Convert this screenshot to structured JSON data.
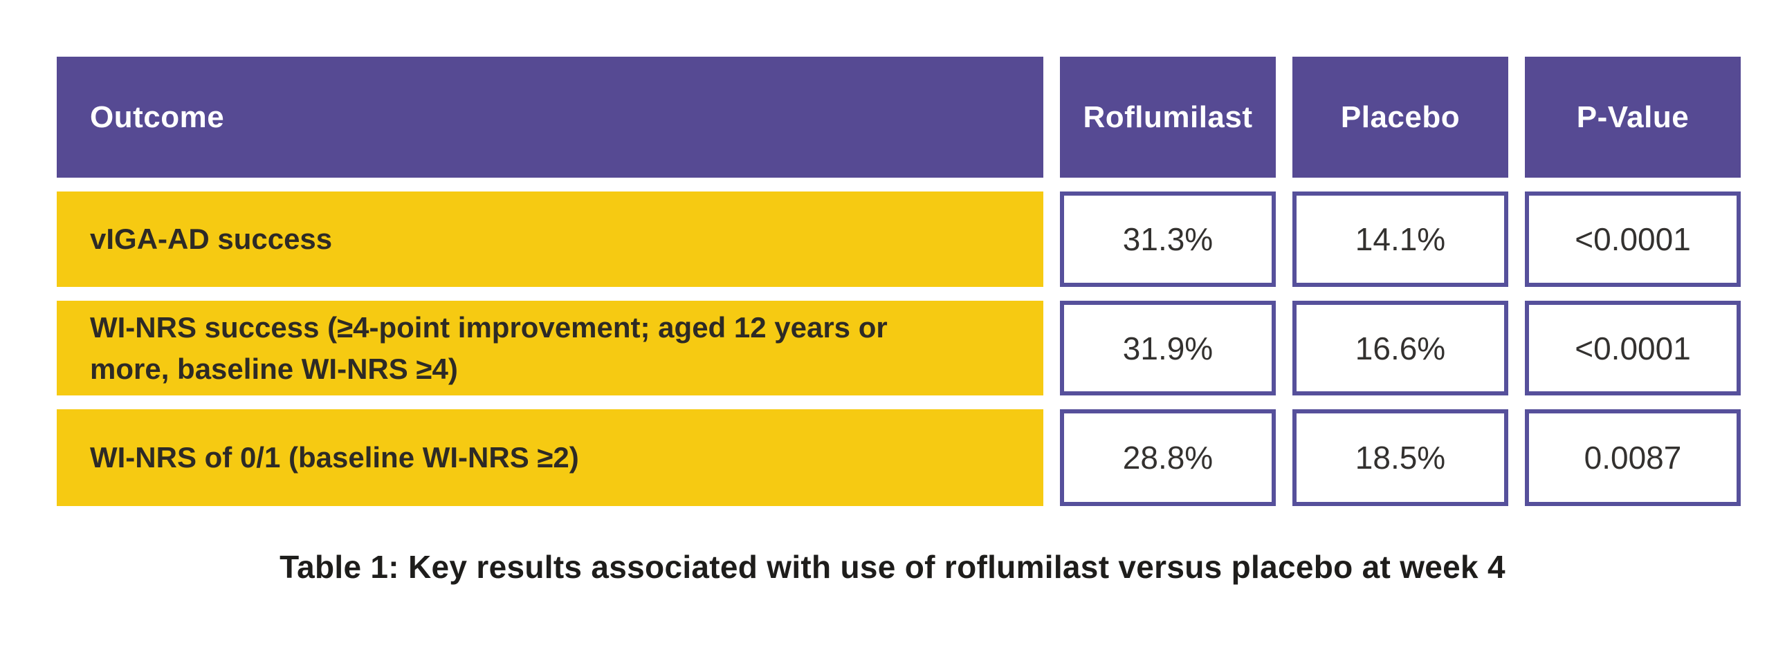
{
  "chart_data": {
    "type": "table",
    "title": "Table 1: Key results associated with use of roflumilast versus placebo at week 4",
    "columns": [
      "Outcome",
      "Roflumilast",
      "Placebo",
      "P-Value"
    ],
    "rows": [
      [
        "vIGA-AD success",
        "31.3%",
        "14.1%",
        "<0.0001"
      ],
      [
        "WI-NRS success (≥4-point improvement; aged 12 years or more, baseline WI-NRS ≥4)",
        "31.9%",
        "16.6%",
        "<0.0001"
      ],
      [
        "WI-NRS of 0/1 (baseline WI-NRS ≥2)",
        "28.8%",
        "18.5%",
        "0.0087"
      ]
    ],
    "series": [
      {
        "name": "Roflumilast",
        "unit": "%",
        "values": [
          31.3,
          31.9,
          28.8
        ]
      },
      {
        "name": "Placebo",
        "unit": "%",
        "values": [
          14.1,
          16.6,
          18.5
        ]
      }
    ],
    "p_values": [
      "<0.0001",
      "<0.0001",
      "0.0087"
    ],
    "layout": {
      "legend": "none",
      "grid": "off",
      "style": "boxed-cells"
    }
  },
  "colors": {
    "header_background": "#564a93",
    "row_background": "#f6ca12",
    "cell_border": "#56509b",
    "header_text": "#ffffff",
    "label_text": "#2d2a26",
    "value_text": "#33312f",
    "caption_text": "#1e1d1b",
    "page_background": "#ffffff"
  }
}
